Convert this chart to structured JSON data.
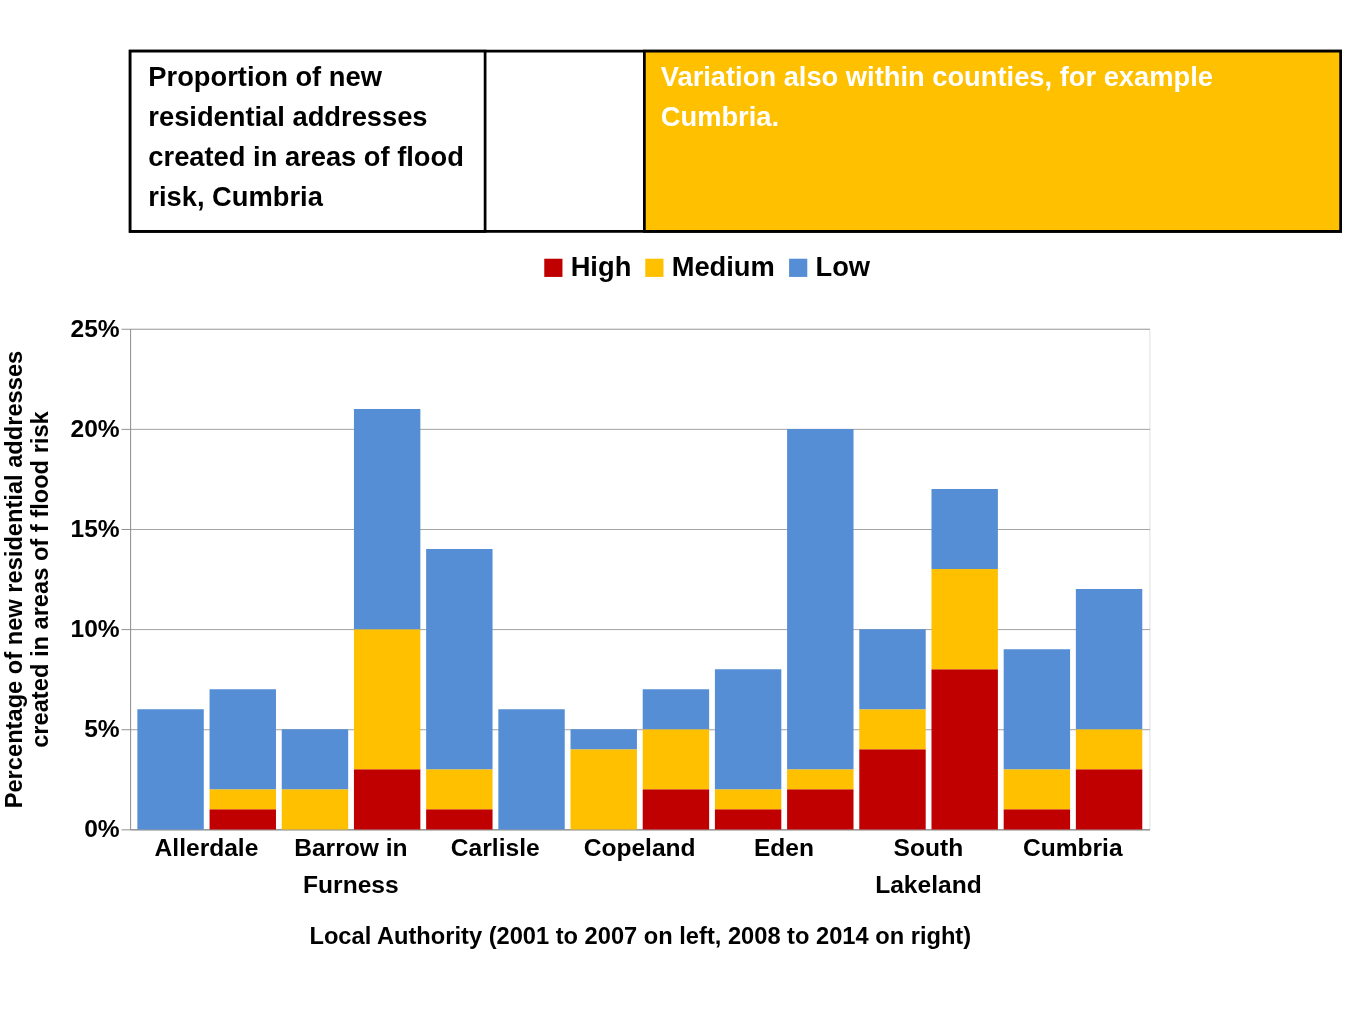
{
  "chart_data": {
    "type": "bar",
    "stacked": true,
    "title": "Proportion of new residential addresses created  in areas of flood risk, Cumbria",
    "subtitle": "Variation also within counties, for example Cumbria.",
    "xlabel": "Local Authority (2001 to 2007 on left, 2008 to 2014 on right)",
    "ylabel": "Percentage of new residential addresses created in areas of f flood risk",
    "categories": [
      "Allerdale",
      null,
      "Barrow in Furness",
      null,
      "Carlisle",
      null,
      "Copeland",
      null,
      "Eden",
      null,
      "South Lakeland",
      null,
      "Cumbria",
      null
    ],
    "series": [
      {
        "name": "High",
        "color": "#c00000",
        "values": [
          0,
          1,
          0,
          3,
          1,
          0,
          0,
          2,
          1,
          2,
          4,
          8,
          1,
          3
        ]
      },
      {
        "name": "Medium",
        "color": "#ffc000",
        "values": [
          0,
          1,
          2,
          7,
          2,
          0,
          4,
          3,
          1,
          1,
          2,
          5,
          2,
          2
        ]
      },
      {
        "name": "Low",
        "color": "#558ed5",
        "values": [
          6,
          5,
          3,
          11,
          11,
          6,
          1,
          2,
          6,
          17,
          4,
          4,
          6,
          7
        ]
      }
    ],
    "ylim": [
      0,
      25
    ],
    "yticks": [
      {
        "value": 0,
        "label": "0%"
      },
      {
        "value": 5,
        "label": "5%"
      },
      {
        "value": 10,
        "label": "10%"
      },
      {
        "value": 15,
        "label": "15%"
      },
      {
        "value": 20,
        "label": "20%"
      },
      {
        "value": 25,
        "label": "25%"
      }
    ],
    "grid": "y",
    "legend": "top"
  }
}
